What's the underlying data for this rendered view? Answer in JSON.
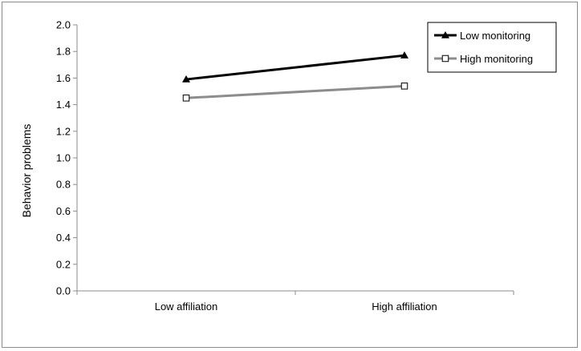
{
  "chart_data": {
    "type": "line",
    "categories": [
      "Low affiliation",
      "High affiliation"
    ],
    "series": [
      {
        "name": "Low monitoring",
        "values": [
          1.59,
          1.77
        ],
        "color": "#000000",
        "marker": "filled-triangle"
      },
      {
        "name": "High monitoring",
        "values": [
          1.45,
          1.54
        ],
        "color": "#8c8c8c",
        "marker": "open-square"
      }
    ],
    "title": "",
    "xlabel": "",
    "ylabel": "Behavior problems",
    "ylim": [
      0,
      2.0
    ],
    "yticks": [
      "0.0",
      "0.2",
      "0.4",
      "0.6",
      "0.8",
      "1.0",
      "1.2",
      "1.4",
      "1.6",
      "1.8",
      "2.0"
    ],
    "grid": false,
    "legend": "top-right"
  }
}
